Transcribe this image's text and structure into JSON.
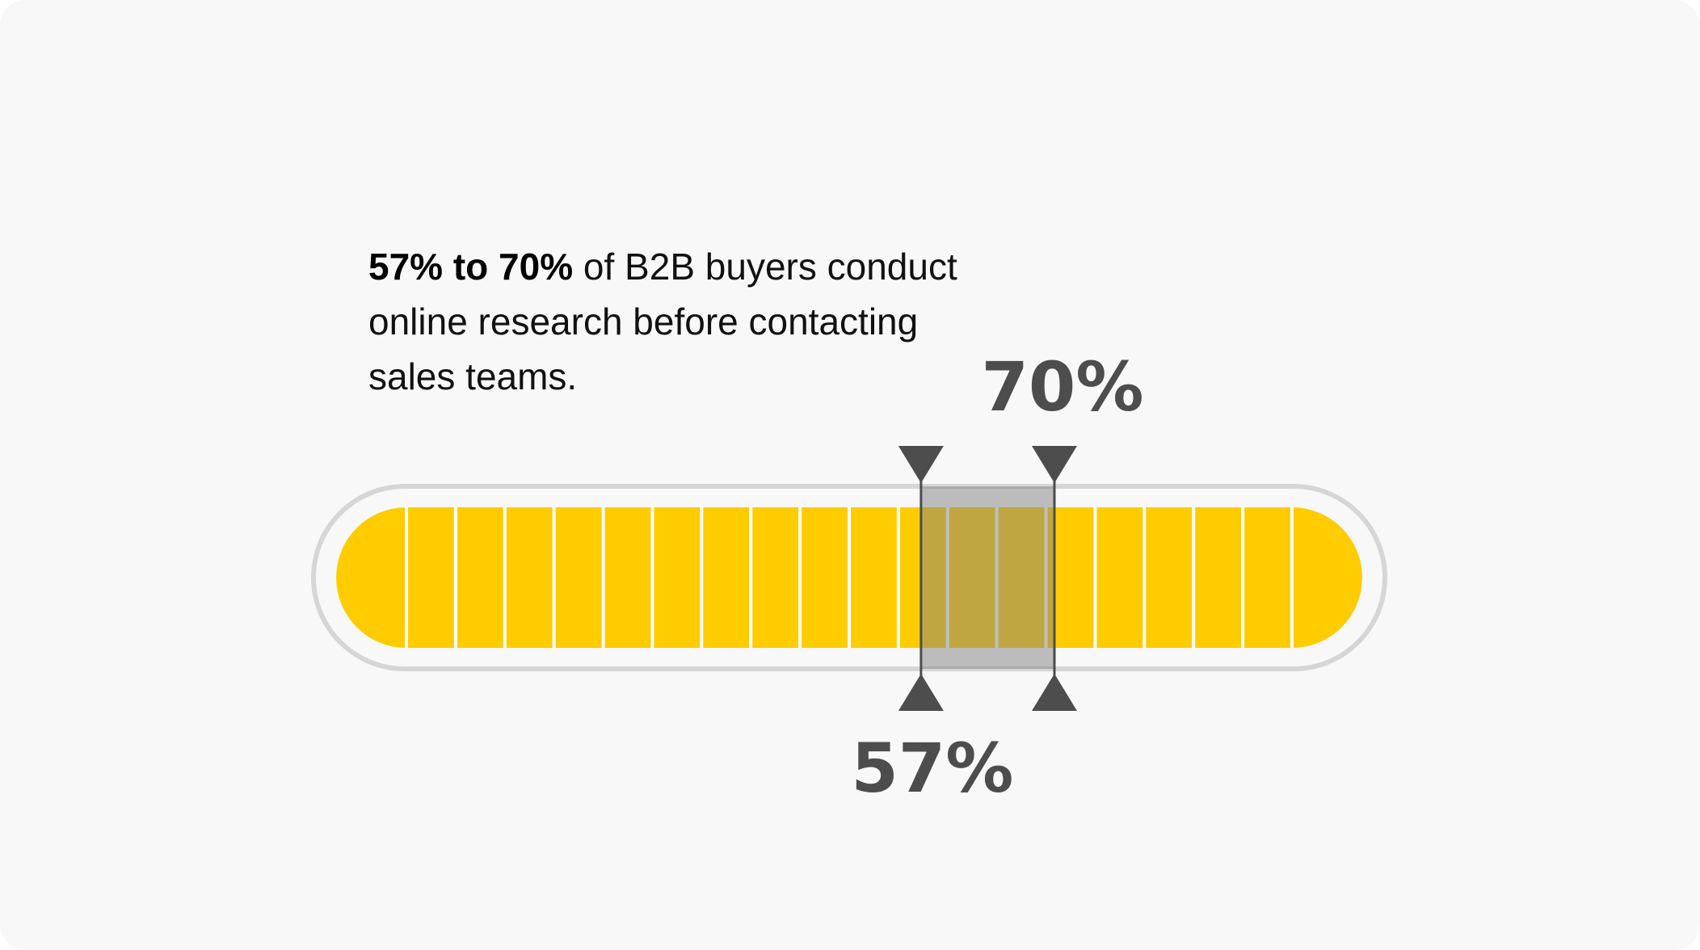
{
  "statement": {
    "highlight": "57% to 70%",
    "text": " of B2B buyers conduct online research before contacting sales teams."
  },
  "colors": {
    "background": "#f8f8f8",
    "fill": "#ffcc00",
    "highlight_fill": "#bf9600",
    "track_outline": "#d6d6d6",
    "marker": "#4d4d4d",
    "range_overlay": "#808080"
  },
  "chart_data": {
    "type": "bar",
    "segments": 20,
    "range": {
      "low": 57,
      "high": 70,
      "unit": "%",
      "low_label": "57%",
      "high_label": "70%"
    },
    "scale": [
      0,
      100
    ]
  }
}
